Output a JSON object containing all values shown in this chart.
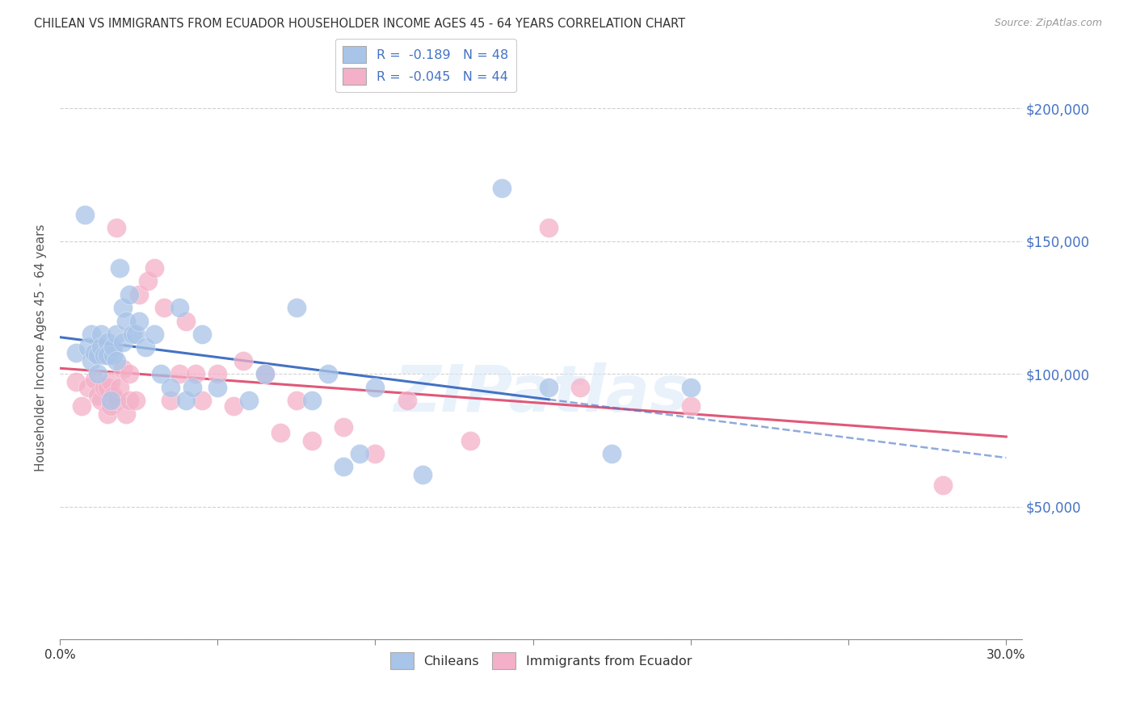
{
  "title": "CHILEAN VS IMMIGRANTS FROM ECUADOR HOUSEHOLDER INCOME AGES 45 - 64 YEARS CORRELATION CHART",
  "source": "Source: ZipAtlas.com",
  "ylabel": "Householder Income Ages 45 - 64 years",
  "xlim": [
    0.0,
    0.305
  ],
  "ylim": [
    0,
    220000
  ],
  "yticks": [
    0,
    50000,
    100000,
    150000,
    200000
  ],
  "ytick_labels": [
    "",
    "$50,000",
    "$100,000",
    "$150,000",
    "$200,000"
  ],
  "chileans_color": "#a8c4e8",
  "ecuador_color": "#f4b0c8",
  "trend_chileans_color": "#4472c4",
  "trend_ecuador_color": "#e05878",
  "watermark": "ZIPatlas",
  "chileans_R": -0.189,
  "chileans_N": 48,
  "ecuador_R": -0.045,
  "ecuador_N": 44,
  "chileans_x": [
    0.005,
    0.008,
    0.009,
    0.01,
    0.01,
    0.011,
    0.012,
    0.012,
    0.013,
    0.013,
    0.014,
    0.015,
    0.015,
    0.016,
    0.017,
    0.017,
    0.018,
    0.018,
    0.019,
    0.02,
    0.02,
    0.021,
    0.022,
    0.023,
    0.024,
    0.025,
    0.027,
    0.03,
    0.032,
    0.035,
    0.038,
    0.04,
    0.042,
    0.045,
    0.05,
    0.06,
    0.065,
    0.075,
    0.08,
    0.085,
    0.09,
    0.095,
    0.1,
    0.115,
    0.14,
    0.155,
    0.175,
    0.2
  ],
  "chileans_y": [
    108000,
    160000,
    110000,
    115000,
    105000,
    108000,
    107000,
    100000,
    115000,
    110000,
    107000,
    112000,
    107000,
    90000,
    107000,
    110000,
    115000,
    105000,
    140000,
    112000,
    125000,
    120000,
    130000,
    115000,
    115000,
    120000,
    110000,
    115000,
    100000,
    95000,
    125000,
    90000,
    95000,
    115000,
    95000,
    90000,
    100000,
    125000,
    90000,
    100000,
    65000,
    70000,
    95000,
    62000,
    170000,
    95000,
    70000,
    95000
  ],
  "ecuador_x": [
    0.005,
    0.007,
    0.009,
    0.011,
    0.012,
    0.013,
    0.014,
    0.015,
    0.015,
    0.016,
    0.016,
    0.017,
    0.018,
    0.018,
    0.019,
    0.02,
    0.021,
    0.022,
    0.022,
    0.024,
    0.025,
    0.028,
    0.03,
    0.033,
    0.035,
    0.038,
    0.04,
    0.043,
    0.045,
    0.05,
    0.055,
    0.058,
    0.065,
    0.07,
    0.075,
    0.08,
    0.09,
    0.1,
    0.11,
    0.13,
    0.155,
    0.165,
    0.2,
    0.28
  ],
  "ecuador_y": [
    97000,
    88000,
    95000,
    98000,
    92000,
    90000,
    95000,
    95000,
    85000,
    97000,
    88000,
    92000,
    155000,
    90000,
    95000,
    102000,
    85000,
    100000,
    90000,
    90000,
    130000,
    135000,
    140000,
    125000,
    90000,
    100000,
    120000,
    100000,
    90000,
    100000,
    88000,
    105000,
    100000,
    78000,
    90000,
    75000,
    80000,
    70000,
    90000,
    75000,
    155000,
    95000,
    88000,
    58000
  ],
  "xtick_positions": [
    0.0,
    0.05,
    0.1,
    0.15,
    0.2,
    0.25,
    0.3
  ],
  "trend_solid_end": 0.155,
  "trend_dash_start": 0.155,
  "trend_dash_end": 0.3
}
